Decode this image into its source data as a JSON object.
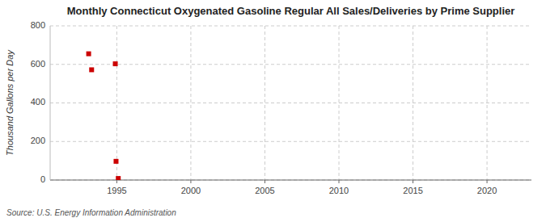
{
  "chart_data": {
    "type": "scatter",
    "title": "Monthly Connecticut Oxygenated Gasoline Regular All Sales/Deliveries by Prime Supplier",
    "ylabel": "Thousand Gallons per Day",
    "source": "Source: U.S. Energy Information Administration",
    "x": [
      1993.1,
      1993.3,
      1994.9,
      1994.95,
      1995.1
    ],
    "values": [
      655,
      572,
      603,
      97,
      8
    ],
    "color": "#cc0000",
    "marker": "square",
    "xlim": [
      1990.5,
      2023
    ],
    "ylim": [
      0,
      800
    ],
    "xticks": [
      1995,
      2000,
      2005,
      2010,
      2015,
      2020
    ],
    "yticks": [
      0,
      200,
      400,
      600,
      800
    ],
    "grid": true
  }
}
